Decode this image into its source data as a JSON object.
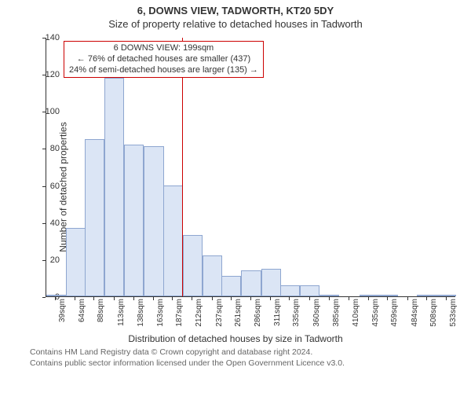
{
  "title_line1": "6, DOWNS VIEW, TADWORTH, KT20 5DY",
  "title_line2": "Size of property relative to detached houses in Tadworth",
  "ylabel": "Number of detached properties",
  "xlabel": "Distribution of detached houses by size in Tadworth",
  "footer_line1": "Contains HM Land Registry data © Crown copyright and database right 2024.",
  "footer_line2": "Contains public sector information licensed under the Open Government Licence v3.0.",
  "chart": {
    "type": "histogram",
    "background_color": "#ffffff",
    "bar_fill": "#dbe5f5",
    "bar_border": "#8ea6d0",
    "axis_color": "#333333",
    "marker_color": "#cc0000",
    "xlim": [
      27,
      545
    ],
    "ylim": [
      0,
      140
    ],
    "ytick_step": 20,
    "yticks": [
      0,
      20,
      40,
      60,
      80,
      100,
      120,
      140
    ],
    "xtick_labels": [
      "39sqm",
      "64sqm",
      "88sqm",
      "113sqm",
      "138sqm",
      "163sqm",
      "187sqm",
      "212sqm",
      "237sqm",
      "261sqm",
      "286sqm",
      "311sqm",
      "335sqm",
      "360sqm",
      "385sqm",
      "410sqm",
      "435sqm",
      "459sqm",
      "484sqm",
      "508sqm",
      "533sqm"
    ],
    "xtick_values": [
      39,
      64,
      88,
      113,
      138,
      163,
      187,
      212,
      237,
      261,
      286,
      311,
      335,
      360,
      385,
      410,
      435,
      459,
      484,
      508,
      533
    ],
    "bar_width_sqm": 25,
    "bars": [
      {
        "x": 39,
        "y": 1
      },
      {
        "x": 64,
        "y": 37
      },
      {
        "x": 88,
        "y": 85
      },
      {
        "x": 113,
        "y": 118
      },
      {
        "x": 138,
        "y": 82
      },
      {
        "x": 163,
        "y": 81
      },
      {
        "x": 187,
        "y": 60
      },
      {
        "x": 212,
        "y": 33
      },
      {
        "x": 237,
        "y": 22
      },
      {
        "x": 261,
        "y": 11
      },
      {
        "x": 286,
        "y": 14
      },
      {
        "x": 311,
        "y": 15
      },
      {
        "x": 335,
        "y": 6
      },
      {
        "x": 360,
        "y": 6
      },
      {
        "x": 385,
        "y": 1
      },
      {
        "x": 410,
        "y": 0
      },
      {
        "x": 435,
        "y": 1
      },
      {
        "x": 459,
        "y": 1
      },
      {
        "x": 484,
        "y": 0
      },
      {
        "x": 508,
        "y": 1
      },
      {
        "x": 533,
        "y": 1
      }
    ],
    "marker_x": 199,
    "title_fontsize": 13,
    "label_fontsize": 12,
    "tick_fontsize": 11,
    "xtick_fontsize": 10
  },
  "annotation": {
    "line1": "6 DOWNS VIEW: 199sqm",
    "line2": "← 76% of detached houses are smaller (437)",
    "line3": "24% of semi-detached houses are larger (135) →",
    "border_color": "#cc0000",
    "background_color": "#ffffff",
    "fontsize": 11
  }
}
